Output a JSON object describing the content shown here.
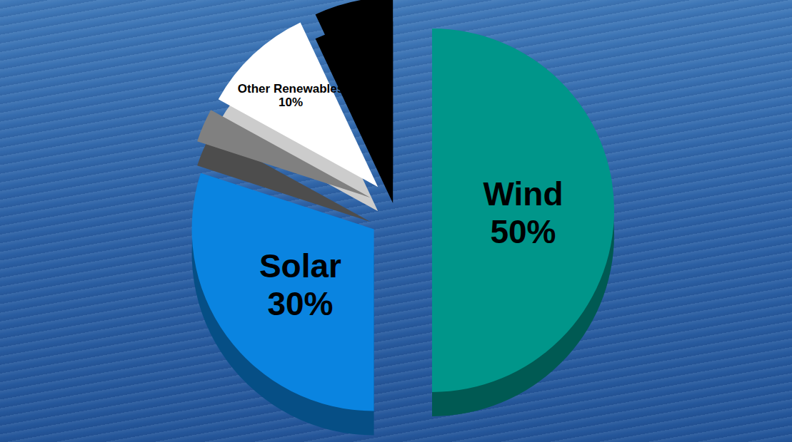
{
  "chart_data": {
    "type": "pie",
    "categories": [
      "Wind",
      "Solar",
      null,
      "Other Renewables",
      null
    ],
    "values": [
      50,
      30,
      3,
      10,
      7
    ],
    "value_labels": [
      "50%",
      "30%",
      null,
      "10%",
      null
    ],
    "colors": [
      "#00968a",
      "#0a84e0",
      "#808080",
      "#ffffff",
      "#000000"
    ],
    "data_labels": true
  }
}
